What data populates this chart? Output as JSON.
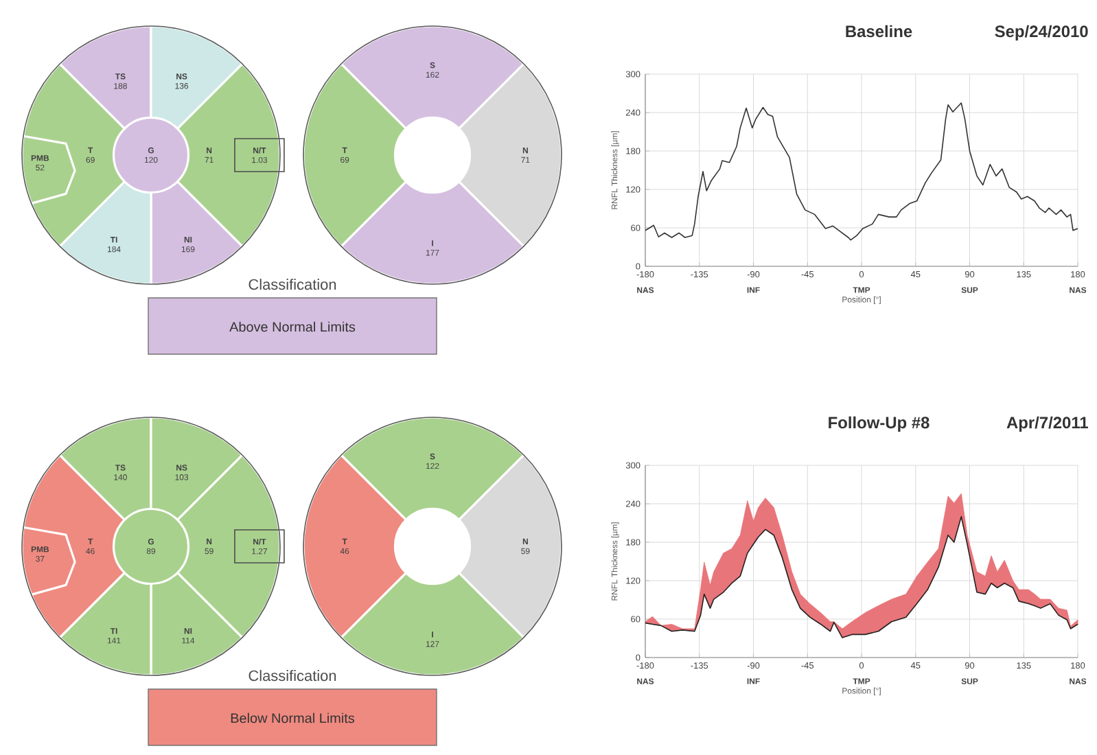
{
  "chart_data": [
    {
      "type": "other",
      "categories": [
        "TS",
        "NS",
        "N",
        "NI",
        "TI",
        "T",
        "PMB",
        "G",
        "N/T"
      ],
      "values": [
        188,
        136,
        71,
        169,
        184,
        69,
        52,
        120,
        1.03
      ],
      "colors": [
        "#d5bfe0",
        "#cde8e6",
        "#a9d18e",
        "#d5bfe0",
        "#cde8e6",
        "#a9d18e",
        "#a9d18e",
        "#d5bfe0",
        null
      ],
      "annotations": [
        "Classification",
        "Above Normal Limits"
      ],
      "color": "#d5bfe0",
      "data_labels": true
    },
    {
      "type": "other",
      "categories": [
        "S",
        "N",
        "I",
        "T"
      ],
      "values": [
        162,
        71,
        177,
        69
      ],
      "colors": [
        "#d5bfe0",
        "#d9d9d9",
        "#d5bfe0",
        "#a9d18e"
      ],
      "data_labels": true
    },
    {
      "type": "line",
      "title": "Baseline",
      "subtitle": "Sep/24/2010",
      "xlabel": "Position [°]",
      "ylabel": "RNFL Thickness [µm]",
      "xlim": [
        -180,
        180
      ],
      "ylim": [
        0,
        300
      ],
      "xticks": [
        -180,
        -135,
        -90,
        -45,
        0,
        45,
        90,
        135,
        180
      ],
      "yticks": [
        0,
        60,
        120,
        180,
        240,
        300
      ],
      "grid": true,
      "annotations": [
        "NAS",
        "INF",
        "TMP",
        "SUP",
        "NAS"
      ],
      "series": [
        {
          "color": "#333333",
          "x": [
            -180,
            -173,
            -169,
            -164,
            -158,
            -152,
            -147,
            -141,
            -139,
            -136,
            -132,
            -129,
            -125,
            -118,
            -116,
            -110,
            -104,
            -101,
            -96,
            -91,
            -88,
            -82,
            -78,
            -74,
            -70,
            -60,
            -54,
            -47,
            -39,
            -30,
            -24,
            -19,
            -11,
            -9,
            -4,
            1,
            9,
            14,
            23,
            29,
            33,
            40,
            46,
            53,
            58,
            66,
            70,
            72,
            76,
            83,
            86,
            90,
            96,
            101,
            107,
            112,
            117,
            123,
            129,
            133,
            138,
            144,
            148,
            153,
            156,
            162,
            166,
            171,
            174,
            176,
            180
          ],
          "values": [
            56,
            64,
            46,
            52,
            45,
            52,
            45,
            48,
            66,
            109,
            148,
            118,
            134,
            152,
            165,
            162,
            187,
            216,
            247,
            216,
            230,
            248,
            237,
            234,
            202,
            170,
            113,
            88,
            81,
            59,
            63,
            56,
            45,
            41,
            48,
            59,
            66,
            81,
            77,
            77,
            88,
            98,
            102,
            130,
            145,
            166,
            230,
            252,
            241,
            255,
            230,
            180,
            141,
            127,
            159,
            141,
            152,
            123,
            116,
            105,
            109,
            102,
            91,
            84,
            91,
            81,
            88,
            77,
            81,
            56,
            59
          ]
        }
      ]
    },
    {
      "type": "other",
      "categories": [
        "TS",
        "NS",
        "N",
        "NI",
        "TI",
        "T",
        "PMB",
        "G",
        "N/T"
      ],
      "values": [
        140,
        103,
        59,
        114,
        141,
        46,
        37,
        89,
        1.27
      ],
      "colors": [
        "#a9d18e",
        "#a9d18e",
        "#a9d18e",
        "#a9d18e",
        "#a9d18e",
        "#ef8a80",
        "#ef8a80",
        "#a9d18e",
        null
      ],
      "annotations": [
        "Classification",
        "Below Normal Limits"
      ],
      "color": "#ef8a80",
      "data_labels": true
    },
    {
      "type": "other",
      "categories": [
        "S",
        "N",
        "I",
        "T"
      ],
      "values": [
        122,
        59,
        127,
        46
      ],
      "colors": [
        "#a9d18e",
        "#d9d9d9",
        "#a9d18e",
        "#ef8a80"
      ],
      "data_labels": true
    },
    {
      "type": "line",
      "title": "Follow-Up #8",
      "subtitle": "Apr/7/2011",
      "xlabel": "Position [°]",
      "ylabel": "RNFL Thickness [µm]",
      "xlim": [
        -180,
        180
      ],
      "ylim": [
        0,
        300
      ],
      "xticks": [
        -180,
        -135,
        -90,
        -45,
        0,
        45,
        90,
        135,
        180
      ],
      "yticks": [
        0,
        60,
        120,
        180,
        240,
        300
      ],
      "grid": true,
      "color": "#e8757a",
      "annotations": [
        "NAS",
        "INF",
        "TMP",
        "SUP",
        "NAS"
      ],
      "series": [
        {
          "color": "#222222",
          "x": [
            -180,
            -174,
            -167,
            -158,
            -149,
            -139,
            -134,
            -131,
            -126,
            -123,
            -115,
            -108,
            -101,
            -95,
            -90,
            -86,
            -80,
            -73,
            -66,
            -58,
            -51,
            -43,
            -34,
            -26,
            -23,
            -16,
            -8,
            3,
            14,
            25,
            37,
            46,
            55,
            64,
            72,
            77,
            83,
            88,
            96,
            103,
            108,
            113,
            119,
            126,
            131,
            139,
            144,
            149,
            157,
            164,
            171,
            174,
            180
          ],
          "values": [
            54,
            52,
            50,
            41,
            43,
            41,
            66,
            99,
            77,
            91,
            102,
            116,
            127,
            163,
            177,
            188,
            200,
            191,
            156,
            106,
            77,
            63,
            52,
            41,
            55,
            31,
            36,
            36,
            41,
            56,
            63,
            84,
            106,
            141,
            191,
            180,
            220,
            177,
            102,
            99,
            116,
            109,
            116,
            109,
            88,
            84,
            81,
            77,
            84,
            66,
            59,
            45,
            52
          ],
          "lower": [
            54,
            52,
            50,
            41,
            43,
            41,
            66,
            99,
            77,
            91,
            102,
            116,
            127,
            163,
            177,
            188,
            200,
            191,
            156,
            106,
            77,
            63,
            52,
            41,
            55,
            31,
            36,
            36,
            41,
            56,
            63,
            84,
            106,
            141,
            191,
            180,
            220,
            177,
            102,
            99,
            116,
            109,
            116,
            109,
            88,
            84,
            81,
            77,
            84,
            66,
            59,
            45,
            52
          ],
          "upper": [
            56,
            64,
            50,
            52,
            45,
            45,
            106,
            149,
            113,
            134,
            163,
            170,
            191,
            245,
            213,
            234,
            249,
            234,
            191,
            134,
            99,
            84,
            70,
            56,
            56,
            45,
            56,
            70,
            81,
            91,
            99,
            127,
            149,
            170,
            252,
            241,
            256,
            191,
            134,
            127,
            159,
            134,
            152,
            120,
            106,
            106,
            99,
            91,
            91,
            77,
            74,
            49,
            59
          ]
        }
      ]
    }
  ]
}
